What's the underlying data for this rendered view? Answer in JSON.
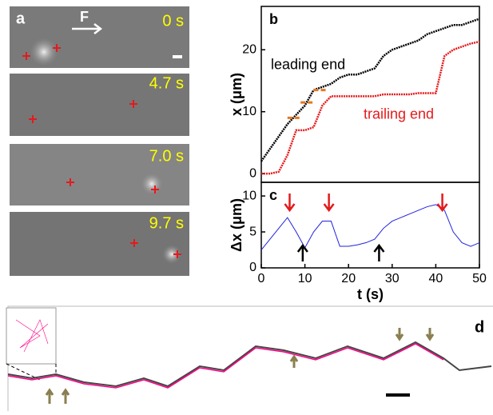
{
  "panel_a": {
    "label": "a",
    "force": "F",
    "frames": [
      "0 s",
      "4.7 s",
      "7.0 s",
      "9.7 s"
    ]
  },
  "chart_data": [
    {
      "type": "line",
      "label": "b",
      "ylabel": "x (μm)",
      "x": [
        0,
        2,
        4,
        6,
        8,
        10,
        12,
        14,
        16,
        18,
        20,
        22,
        24,
        26,
        28,
        30,
        32,
        34,
        36,
        38,
        40,
        42,
        44,
        46,
        48,
        50
      ],
      "series": [
        {
          "name": "leading end",
          "color": "#000000",
          "values": [
            2,
            4,
            6,
            8,
            9.5,
            11,
            13.5,
            14,
            14.5,
            15.5,
            16,
            16,
            16.5,
            17,
            19,
            20,
            20.5,
            21,
            21.5,
            22.5,
            23,
            23.5,
            24,
            24,
            24.5,
            25
          ]
        },
        {
          "name": "trailing end",
          "color": "#e41a1c",
          "values": [
            0,
            0,
            0.3,
            3,
            7,
            7,
            7.5,
            11,
            12.5,
            12.5,
            12.5,
            12.5,
            12.5,
            12.5,
            12.8,
            12.8,
            12.8,
            12.8,
            13,
            13,
            13,
            19,
            20,
            20.5,
            21,
            21.3
          ]
        }
      ],
      "dashes": [
        {
          "x": [
            6,
            9
          ],
          "y": 9
        },
        {
          "x": [
            9,
            12
          ],
          "y": 11.5
        },
        {
          "x": [
            12,
            15
          ],
          "y": 13.5
        }
      ],
      "xlim": [
        0,
        50
      ],
      "ylim": [
        -1.4,
        27
      ],
      "yticks": [
        0,
        10,
        20
      ]
    },
    {
      "type": "line",
      "label": "c",
      "ylabel": "Δx (μm)",
      "xlabel": "t (s)",
      "x": [
        0,
        2,
        4,
        6,
        8,
        10,
        12,
        14,
        16,
        18,
        20,
        22,
        24,
        26,
        28,
        30,
        32,
        34,
        36,
        38,
        40,
        42,
        44,
        46,
        48,
        50
      ],
      "series": [
        {
          "color": "#2222dd",
          "values": [
            2.5,
            4,
            5.5,
            7,
            5,
            2.8,
            5,
            6.5,
            6.5,
            3,
            3,
            3.2,
            3.5,
            4,
            5.5,
            6.5,
            7,
            7.5,
            8,
            8.5,
            8.8,
            8,
            5,
            3.5,
            3,
            3.5
          ]
        }
      ],
      "down_arrows": [
        6.5,
        15.5,
        41.5
      ],
      "up_arrows": [
        9.5,
        27
      ],
      "xlim": [
        0,
        50
      ],
      "ylim": [
        0,
        11.9
      ],
      "xticks": [
        0,
        10,
        20,
        30,
        40,
        50
      ],
      "yticks": [
        0,
        5,
        10
      ]
    }
  ],
  "panel_d": {
    "label": "d"
  }
}
